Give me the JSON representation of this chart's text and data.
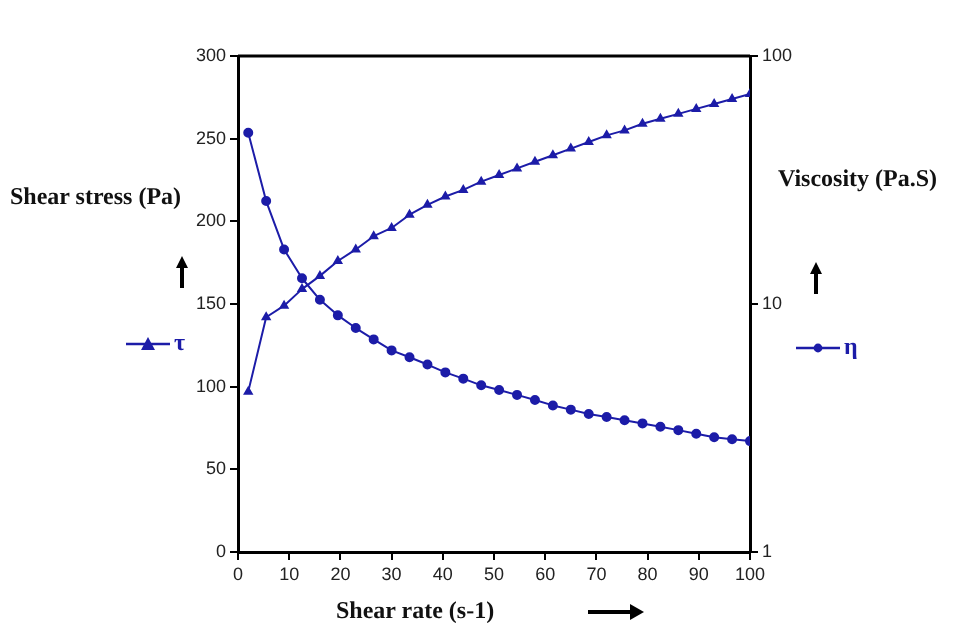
{
  "chart_data": {
    "type": "line",
    "xlabel": "Shear rate  (s-1)",
    "ylabel": "Shear stress (Pa)",
    "y2label": "Viscosity (Pa.S)",
    "x": [
      2,
      5.5,
      9,
      12.5,
      16,
      19.5,
      23,
      26.5,
      30,
      33.5,
      37,
      40.5,
      44,
      47.5,
      51,
      54.5,
      58,
      61.5,
      65,
      68.5,
      72,
      75.5,
      79,
      82.5,
      86,
      89.5,
      93,
      96.5,
      100
    ],
    "series": [
      {
        "name": "τ",
        "color": "#1c1ca8",
        "marker": "triangle",
        "values": [
          97,
          142,
          149,
          159,
          167,
          176,
          183,
          191,
          196,
          204,
          210,
          215,
          219,
          224,
          228,
          232,
          236,
          240,
          244,
          248,
          252,
          255,
          259,
          262,
          265,
          268,
          271,
          274,
          277
        ]
      },
      {
        "name": "η",
        "color": "#1c1ca8",
        "marker": "circle",
        "axis": "y2",
        "values": [
          49,
          26,
          16.6,
          12.7,
          10.4,
          9.0,
          8.0,
          7.2,
          6.5,
          6.1,
          5.7,
          5.3,
          5.0,
          4.7,
          4.5,
          4.3,
          4.1,
          3.9,
          3.75,
          3.6,
          3.5,
          3.4,
          3.3,
          3.2,
          3.1,
          3.0,
          2.9,
          2.85,
          2.8
        ]
      }
    ],
    "xlim": [
      0,
      100
    ],
    "xticks": [
      0,
      10,
      20,
      30,
      40,
      50,
      60,
      70,
      80,
      90,
      100
    ],
    "ylim": [
      0,
      300
    ],
    "yticks": [
      0,
      50,
      100,
      150,
      200,
      250,
      300
    ],
    "y2lim": [
      1,
      100
    ],
    "y2ticks": [
      1,
      10,
      100
    ],
    "log": "y2",
    "grid": false,
    "legend": "left"
  }
}
